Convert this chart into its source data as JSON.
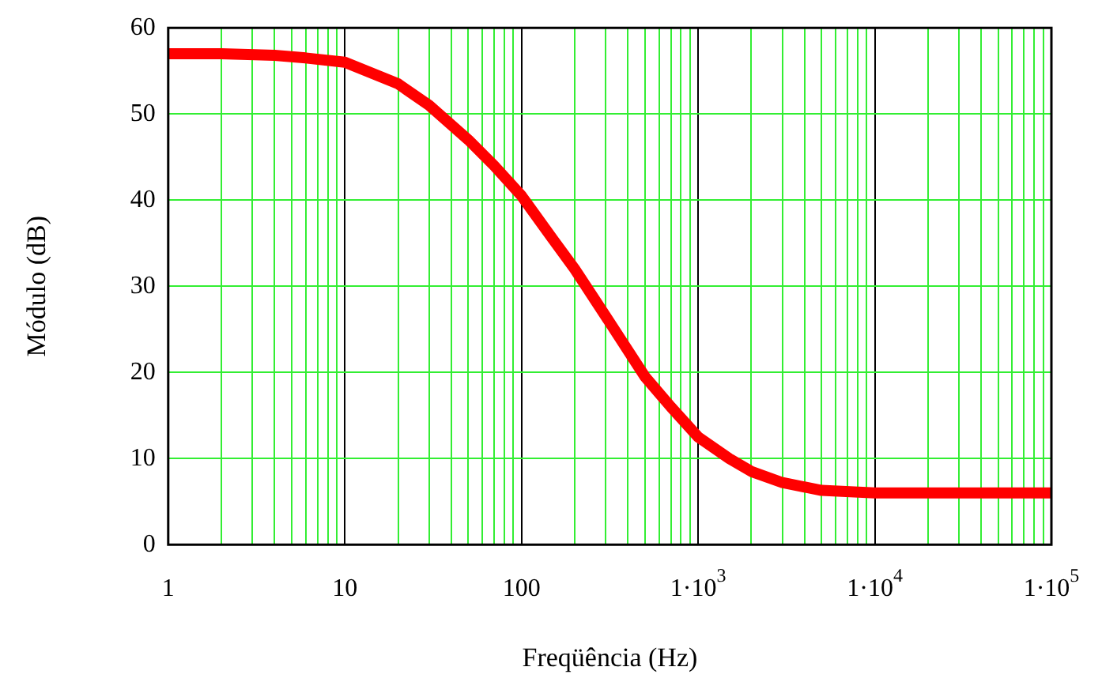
{
  "chart_data": {
    "type": "line",
    "xlabel": "Freqüência (Hz)",
    "ylabel": "Módulo (dB)",
    "log": "x",
    "grid": true,
    "line_style": "solid",
    "xlim": [
      1,
      100000
    ],
    "ylim": [
      0,
      60
    ],
    "yticks": [
      0,
      10,
      20,
      30,
      40,
      50,
      60
    ],
    "xticks": [
      1,
      {
        "value": 2,
        "label": null
      },
      {
        "value": 3,
        "label": null
      },
      {
        "value": 4,
        "label": null
      },
      {
        "value": 5,
        "label": null
      },
      {
        "value": 6,
        "label": null
      },
      {
        "value": 7,
        "label": null
      },
      {
        "value": 8,
        "label": null
      },
      {
        "value": 9,
        "label": null
      },
      10,
      {
        "value": 20,
        "label": null
      },
      {
        "value": 30,
        "label": null
      },
      {
        "value": 40,
        "label": null
      },
      {
        "value": 50,
        "label": null
      },
      {
        "value": 60,
        "label": null
      },
      {
        "value": 70,
        "label": null
      },
      {
        "value": 80,
        "label": null
      },
      {
        "value": 90,
        "label": null
      },
      100,
      {
        "value": 200,
        "label": null
      },
      {
        "value": 300,
        "label": null
      },
      {
        "value": 400,
        "label": null
      },
      {
        "value": 500,
        "label": null
      },
      {
        "value": 600,
        "label": null
      },
      {
        "value": 700,
        "label": null
      },
      {
        "value": 800,
        "label": null
      },
      {
        "value": 900,
        "label": null
      },
      {
        "value": 1000,
        "label": "1·10$^{3}$"
      },
      {
        "value": 2000,
        "label": null
      },
      {
        "value": 3000,
        "label": null
      },
      {
        "value": 4000,
        "label": null
      },
      {
        "value": 5000,
        "label": null
      },
      {
        "value": 6000,
        "label": null
      },
      {
        "value": 7000,
        "label": null
      },
      {
        "value": 8000,
        "label": null
      },
      {
        "value": 9000,
        "label": null
      },
      {
        "value": 10000,
        "label": "1·10$^{4}$"
      },
      {
        "value": 20000,
        "label": null
      },
      {
        "value": 30000,
        "label": null
      },
      {
        "value": 40000,
        "label": null
      },
      {
        "value": 50000,
        "label": null
      },
      {
        "value": 60000,
        "label": null
      },
      {
        "value": 70000,
        "label": null
      },
      {
        "value": 80000,
        "label": null
      },
      {
        "value": 90000,
        "label": null
      },
      {
        "value": 100000,
        "label": "1·10$^{5}$"
      }
    ],
    "x": [
      1,
      2,
      4,
      6,
      10,
      20,
      30,
      50,
      70,
      100,
      150,
      200,
      300,
      500,
      700,
      1000,
      1500,
      2000,
      3000,
      5000,
      10000,
      100000
    ],
    "series": [
      {
        "color": "#ff0000",
        "values": [
          57,
          57,
          56.8,
          56.5,
          56,
          53.5,
          51,
          47,
          44,
          40.5,
          35.5,
          32,
          26.5,
          19.5,
          16,
          12.5,
          10,
          8.5,
          7.2,
          6.3,
          6,
          6
        ]
      }
    ]
  }
}
